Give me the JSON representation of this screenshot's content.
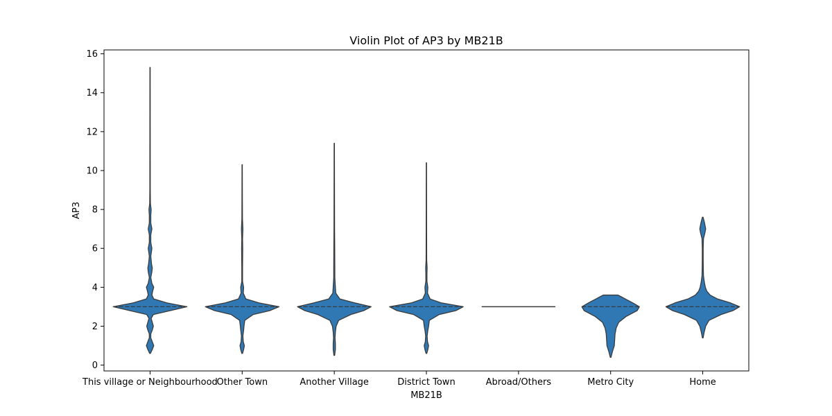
{
  "chart_data": {
    "type": "violin",
    "title": "Violin Plot of AP3 by MB21B",
    "xlabel": "MB21B",
    "ylabel": "AP3",
    "ylim": [
      -0.3,
      16.2
    ],
    "yticks": [
      0,
      2,
      4,
      6,
      8,
      10,
      12,
      14,
      16
    ],
    "categories": [
      "This village or Neighbourhood",
      "Other Town",
      "Another Village",
      "District Town",
      "Abroad/Others",
      "Metro City",
      "Home"
    ],
    "colors": {
      "fill": "#2f78b4",
      "edge": "#3a3a3a",
      "axis": "#000000",
      "background": "#ffffff"
    },
    "grid": false,
    "inner": "quartile",
    "violins": [
      {
        "category": "This village or Neighbourhood",
        "min": 0.6,
        "max": 15.3,
        "median": 3,
        "q1": 3,
        "q3": 3,
        "profile": [
          [
            0.6,
            0.01
          ],
          [
            0.8,
            0.06
          ],
          [
            1.0,
            0.1
          ],
          [
            1.2,
            0.06
          ],
          [
            1.4,
            0.02
          ],
          [
            1.6,
            0.02
          ],
          [
            1.8,
            0.06
          ],
          [
            2.0,
            0.09
          ],
          [
            2.2,
            0.06
          ],
          [
            2.4,
            0.03
          ],
          [
            2.6,
            0.09
          ],
          [
            2.8,
            0.55
          ],
          [
            3.0,
            1.0
          ],
          [
            3.2,
            0.45
          ],
          [
            3.4,
            0.1
          ],
          [
            3.6,
            0.05
          ],
          [
            3.8,
            0.07
          ],
          [
            4.0,
            0.1
          ],
          [
            4.2,
            0.05
          ],
          [
            4.5,
            0.02
          ],
          [
            4.8,
            0.05
          ],
          [
            5.0,
            0.06
          ],
          [
            5.2,
            0.04
          ],
          [
            5.6,
            0.02
          ],
          [
            6.0,
            0.05
          ],
          [
            6.3,
            0.02
          ],
          [
            6.7,
            0.02
          ],
          [
            7.0,
            0.05
          ],
          [
            7.3,
            0.02
          ],
          [
            7.7,
            0.02
          ],
          [
            8.0,
            0.03
          ],
          [
            8.3,
            0.01
          ],
          [
            9.0,
            0.006
          ],
          [
            10.0,
            0.006
          ],
          [
            12.0,
            0.005
          ],
          [
            15.3,
            0.004
          ]
        ]
      },
      {
        "category": "Other Town",
        "min": 0.6,
        "max": 10.3,
        "median": 3,
        "q1": 3,
        "q3": 3,
        "profile": [
          [
            0.6,
            0.01
          ],
          [
            0.8,
            0.04
          ],
          [
            1.0,
            0.06
          ],
          [
            1.2,
            0.03
          ],
          [
            1.5,
            0.02
          ],
          [
            1.8,
            0.04
          ],
          [
            2.0,
            0.05
          ],
          [
            2.3,
            0.07
          ],
          [
            2.6,
            0.3
          ],
          [
            2.8,
            0.75
          ],
          [
            3.0,
            1.0
          ],
          [
            3.2,
            0.45
          ],
          [
            3.4,
            0.1
          ],
          [
            3.7,
            0.03
          ],
          [
            4.0,
            0.04
          ],
          [
            4.3,
            0.01
          ],
          [
            5.0,
            0.01
          ],
          [
            6.0,
            0.015
          ],
          [
            6.5,
            0.01
          ],
          [
            7.0,
            0.02
          ],
          [
            7.5,
            0.008
          ],
          [
            8.5,
            0.006
          ],
          [
            10.3,
            0.004
          ]
        ]
      },
      {
        "category": "Another Village",
        "min": 0.5,
        "max": 11.4,
        "median": 3,
        "q1": 3,
        "q3": 3,
        "profile": [
          [
            0.5,
            0.01
          ],
          [
            0.8,
            0.03
          ],
          [
            1.1,
            0.03
          ],
          [
            1.4,
            0.02
          ],
          [
            1.7,
            0.03
          ],
          [
            2.0,
            0.05
          ],
          [
            2.3,
            0.12
          ],
          [
            2.6,
            0.45
          ],
          [
            2.8,
            0.8
          ],
          [
            3.0,
            1.0
          ],
          [
            3.2,
            0.55
          ],
          [
            3.4,
            0.15
          ],
          [
            3.7,
            0.04
          ],
          [
            4.0,
            0.03
          ],
          [
            4.5,
            0.015
          ],
          [
            5.0,
            0.015
          ],
          [
            6.0,
            0.012
          ],
          [
            7.0,
            0.008
          ],
          [
            9.0,
            0.006
          ],
          [
            11.4,
            0.004
          ]
        ]
      },
      {
        "category": "District Town",
        "min": 0.6,
        "max": 10.4,
        "median": 3,
        "q1": 3,
        "q3": 3,
        "profile": [
          [
            0.6,
            0.01
          ],
          [
            0.8,
            0.04
          ],
          [
            1.0,
            0.06
          ],
          [
            1.2,
            0.03
          ],
          [
            1.5,
            0.02
          ],
          [
            1.8,
            0.04
          ],
          [
            2.0,
            0.06
          ],
          [
            2.3,
            0.08
          ],
          [
            2.6,
            0.35
          ],
          [
            2.8,
            0.8
          ],
          [
            3.0,
            1.0
          ],
          [
            3.2,
            0.4
          ],
          [
            3.4,
            0.1
          ],
          [
            3.7,
            0.03
          ],
          [
            4.0,
            0.04
          ],
          [
            4.3,
            0.015
          ],
          [
            4.7,
            0.015
          ],
          [
            5.0,
            0.02
          ],
          [
            5.4,
            0.008
          ],
          [
            7.0,
            0.006
          ],
          [
            10.4,
            0.004
          ]
        ]
      },
      {
        "category": "Abroad/Others",
        "min": 3,
        "max": 3,
        "median": 3,
        "q1": 3,
        "q3": 3,
        "profile": []
      },
      {
        "category": "Metro City",
        "min": 0.4,
        "max": 3.6,
        "median": 3,
        "q1": 3,
        "q3": 3,
        "profile": [
          [
            0.4,
            0.01
          ],
          [
            0.7,
            0.05
          ],
          [
            1.0,
            0.1
          ],
          [
            1.3,
            0.11
          ],
          [
            1.6,
            0.12
          ],
          [
            1.9,
            0.15
          ],
          [
            2.2,
            0.22
          ],
          [
            2.5,
            0.42
          ],
          [
            2.8,
            0.72
          ],
          [
            3.0,
            0.78
          ],
          [
            3.2,
            0.6
          ],
          [
            3.4,
            0.4
          ],
          [
            3.5,
            0.3
          ],
          [
            3.6,
            0.2
          ]
        ]
      },
      {
        "category": "Home",
        "min": 1.4,
        "max": 7.6,
        "median": 3,
        "q1": 3,
        "q3": 3,
        "profile": [
          [
            1.4,
            0.01
          ],
          [
            1.7,
            0.04
          ],
          [
            2.0,
            0.08
          ],
          [
            2.3,
            0.17
          ],
          [
            2.6,
            0.5
          ],
          [
            2.8,
            0.82
          ],
          [
            3.0,
            1.0
          ],
          [
            3.2,
            0.75
          ],
          [
            3.4,
            0.4
          ],
          [
            3.6,
            0.2
          ],
          [
            3.8,
            0.11
          ],
          [
            4.0,
            0.07
          ],
          [
            4.3,
            0.04
          ],
          [
            4.6,
            0.02
          ],
          [
            5.0,
            0.015
          ],
          [
            5.5,
            0.012
          ],
          [
            6.0,
            0.012
          ],
          [
            6.5,
            0.02
          ],
          [
            6.8,
            0.06
          ],
          [
            7.0,
            0.08
          ],
          [
            7.3,
            0.05
          ],
          [
            7.6,
            0.01
          ]
        ]
      }
    ]
  }
}
